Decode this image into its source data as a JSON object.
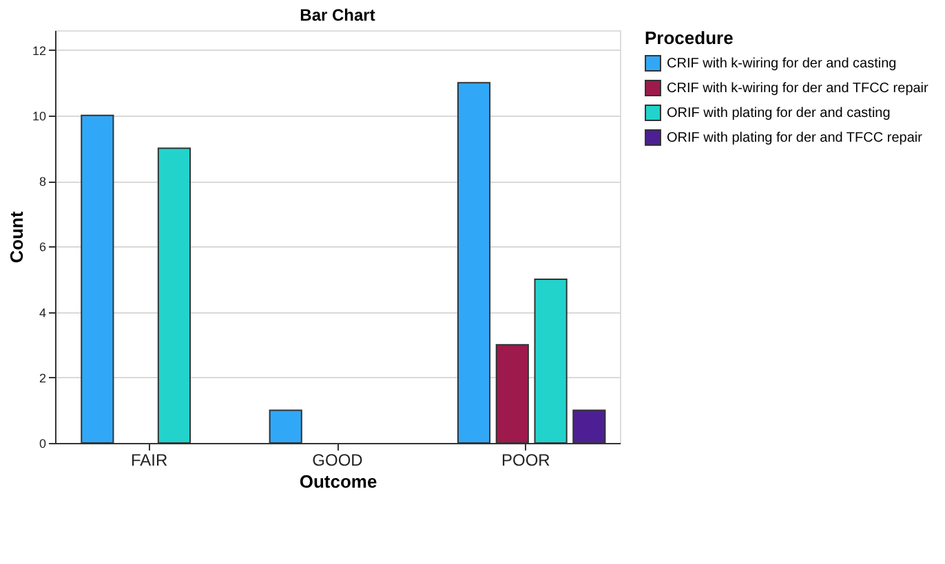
{
  "chart_data": {
    "type": "bar",
    "title": "Bar Chart",
    "xlabel": "Outcome",
    "ylabel": "Count",
    "legend_title": "Procedure",
    "categories": [
      "FAIR",
      "GOOD",
      "POOR"
    ],
    "series": [
      {
        "name": "CRIF with k-wiring for der and casting",
        "color": "#31a8f7",
        "values": [
          10,
          1,
          11
        ]
      },
      {
        "name": "CRIF with k-wiring for der and TFCC repair",
        "color": "#9e1a4c",
        "values": [
          null,
          null,
          3
        ]
      },
      {
        "name": "ORIF with plating for der and casting",
        "color": "#22d3cc",
        "values": [
          9,
          null,
          5
        ]
      },
      {
        "name": "ORIF with plating for der and TFCC repair",
        "color": "#4d1f94",
        "values": [
          null,
          null,
          1
        ]
      }
    ],
    "ylim": [
      0,
      12.6
    ],
    "yticks": [
      0,
      2,
      4,
      6,
      8,
      10,
      12
    ],
    "grid": "y",
    "legend": "top right"
  }
}
